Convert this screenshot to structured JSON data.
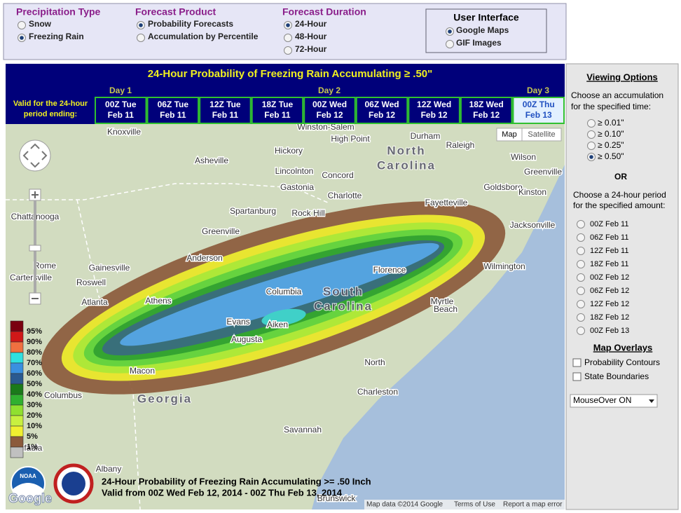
{
  "controls": {
    "groups": [
      {
        "title": "Precipitation Type",
        "options": [
          "Snow",
          "Freezing Rain"
        ],
        "selected": 1
      },
      {
        "title": "Forecast Product",
        "options": [
          "Probability Forecasts",
          "Accumulation by Percentile"
        ],
        "selected": 0
      },
      {
        "title": "Forecast Duration",
        "options": [
          "24-Hour",
          "48-Hour",
          "72-Hour"
        ],
        "selected": 0
      }
    ],
    "user_interface": {
      "title": "User Interface",
      "options": [
        "Google Maps",
        "GIF Images"
      ],
      "selected": 0
    }
  },
  "header": {
    "title": "24-Hour Probability of Freezing Rain Accumulating ≥ .50\"",
    "valid_label": [
      "Valid for the 24-hour",
      "period ending:"
    ],
    "days": [
      "Day 1",
      "Day 2",
      "Day 3"
    ]
  },
  "periods": [
    {
      "line1": "00Z Tue",
      "line2": "Feb 11"
    },
    {
      "line1": "06Z Tue",
      "line2": "Feb 11"
    },
    {
      "line1": "12Z Tue",
      "line2": "Feb 11"
    },
    {
      "line1": "18Z Tue",
      "line2": "Feb 11"
    },
    {
      "line1": "00Z Wed",
      "line2": "Feb 12"
    },
    {
      "line1": "06Z Wed",
      "line2": "Feb 12"
    },
    {
      "line1": "12Z Wed",
      "line2": "Feb 12"
    },
    {
      "line1": "18Z Wed",
      "line2": "Feb 12"
    },
    {
      "line1": "00Z Thu",
      "line2": "Feb 13"
    }
  ],
  "selected_period": 8,
  "map": {
    "labels": [
      "Knoxville",
      "Asheville",
      "Winston-Salem",
      "Durham",
      "Raleigh",
      "Hickory",
      "High Point",
      "Lincolnton",
      "Concord",
      "Gastonia",
      "Charlotte",
      "Spartanburg",
      "Rock Hill",
      "Greenville",
      "Anderson",
      "Chattanooga",
      "Rome",
      "Cartersville",
      "Gainesville",
      "Roswell",
      "Atlanta",
      "Athens",
      "Columbia",
      "Florence",
      "Evans",
      "Aiken",
      "Augusta",
      "Macon",
      "Columbus",
      "Savannah",
      "North",
      "Charleston",
      "Myrtle",
      "Beach",
      "Wilmington",
      "Fayetteville",
      "Goldsboro",
      "Wilson",
      "Greenville",
      "Kinston",
      "Jacksonville",
      "Albany",
      "Brunswick",
      "Eufaula"
    ],
    "state_labels": [
      "North",
      "Carolina",
      "South",
      "Carolina",
      "Georgia"
    ],
    "buttons": [
      "Map",
      "Satellite"
    ],
    "legend": {
      "labels": [
        "95%",
        "90%",
        "80%",
        "70%",
        "60%",
        "50%",
        "40%",
        "30%",
        "20%",
        "10%",
        "5%",
        "1%",
        null
      ],
      "colors": [
        "#7a0010",
        "#d01818",
        "#f07040",
        "#30e0e0",
        "#3a90e0",
        "#2a5a90",
        "#1a7a1a",
        "#30b030",
        "#90e030",
        "#c8f040",
        "#f0f030",
        "#8b5a3c",
        "#c0c0c0"
      ]
    },
    "caption": [
      "24-Hour Probability of Freezing Rain Accumulating >= .50 Inch",
      "Valid from 00Z Wed Feb 12, 2014 - 00Z Thu Feb 13, 2014"
    ],
    "attribution": [
      "Map data ©2014 Google",
      "Terms of Use",
      "Report a map error"
    ],
    "logos": [
      "NOAA",
      "Google"
    ]
  },
  "sidebar": {
    "title": "Viewing Options",
    "accumulation_prompt": [
      "Choose an accumulation",
      "for the specified time:"
    ],
    "accumulation_options": [
      "≥ 0.01\"",
      "≥ 0.10\"",
      "≥ 0.25\"",
      "≥ 0.50\""
    ],
    "accumulation_selected": 3,
    "or": "OR",
    "period_prompt": [
      "Choose a 24-hour period",
      "for the specified amount:"
    ],
    "period_options": [
      "00Z Feb 11",
      "06Z Feb 11",
      "12Z Feb 11",
      "18Z Feb 11",
      "00Z Feb 12",
      "06Z Feb 12",
      "12Z Feb 12",
      "18Z Feb 12",
      "00Z Feb 13"
    ],
    "overlays_title": "Map Overlays",
    "overlays": [
      "Probability Contours",
      "State Boundaries"
    ],
    "mouseover": "MouseOver ON"
  }
}
